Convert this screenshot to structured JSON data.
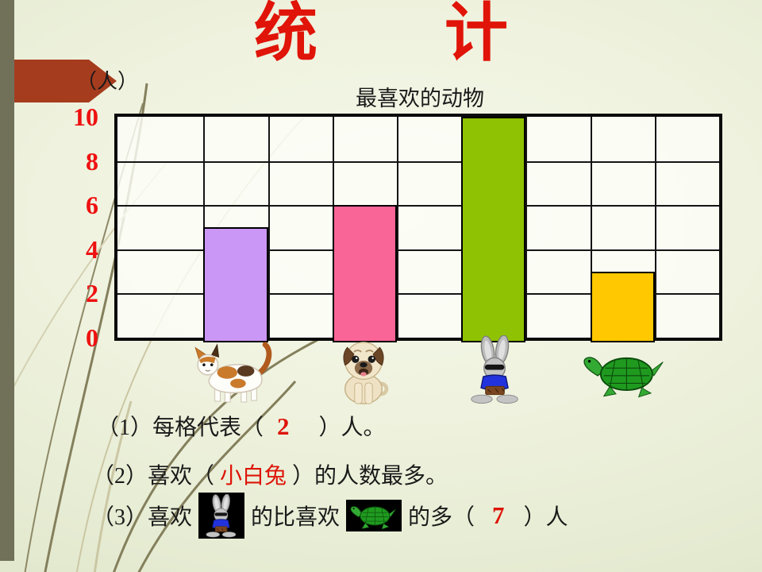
{
  "slide": {
    "title": "统　　计",
    "unit_label": "（人）"
  },
  "chart_data": {
    "type": "bar",
    "title": "最喜欢的动物",
    "categories": [
      "cat",
      "dog",
      "rabbit",
      "turtle"
    ],
    "values": [
      5,
      6,
      10,
      3
    ],
    "ylabel": "（人）",
    "ylim": [
      0,
      10
    ],
    "yticks": [
      "10",
      "8",
      "6",
      "4",
      "2",
      "0"
    ],
    "people_per_cell": 2,
    "grid": true,
    "grid_columns": 9,
    "grid_rows": 5,
    "legend": "none",
    "bar_colors": [
      "#cb97f7",
      "#fa6597",
      "#8fc202",
      "#ffc800"
    ]
  },
  "questions": {
    "q1": {
      "prefix": "（1）每格代表（",
      "answer": "2",
      "suffix": "）人。"
    },
    "q2": {
      "prefix": "（2）喜欢（",
      "answer": "小白兔",
      "suffix": "）的人数最多。"
    },
    "q3": {
      "p1": "（3）喜欢",
      "p2": "的比喜欢",
      "p3": "的多（",
      "answer": "7",
      "suffix": "）人"
    }
  },
  "icons": [
    "cat-image",
    "dog-image",
    "rabbit-image",
    "turtle-image"
  ],
  "colors": {
    "title_red": "#e01408",
    "axis_red": "#ee1111",
    "answer_red": "#dd1408",
    "arrow_brick": "#a63c1e",
    "grass_dark": "#847f5c",
    "grass_light": "#cbc7a4"
  }
}
